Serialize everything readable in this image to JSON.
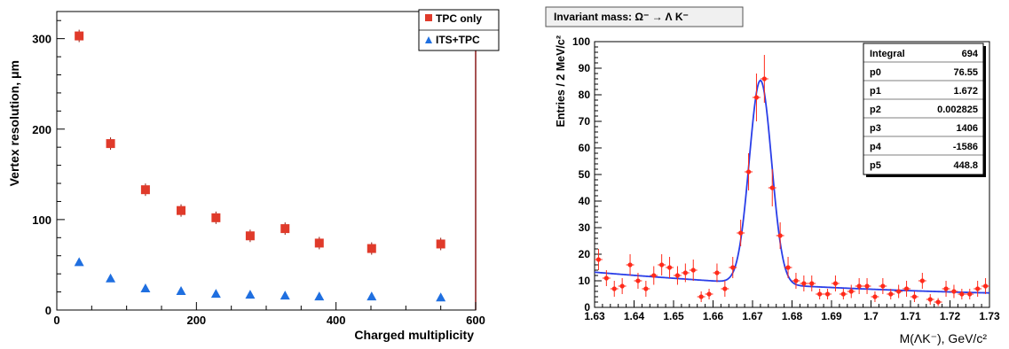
{
  "chart_data": [
    {
      "type": "scatter",
      "title": "",
      "xlabel": "Charged multiplicity",
      "ylabel": "Vertex resolution, μm",
      "xlim": [
        0,
        600
      ],
      "ylim": [
        0,
        330
      ],
      "x_ticks": [
        "0",
        "200",
        "400",
        "600"
      ],
      "y_ticks": [
        "0",
        "100",
        "200",
        "300"
      ],
      "legend_position": "top-right",
      "series": [
        {
          "name": "TPC only",
          "color": "#e03a2a",
          "marker": "square",
          "x": [
            32,
            77,
            127,
            178,
            228,
            277,
            327,
            376,
            451,
            550
          ],
          "y": [
            303,
            184,
            133,
            110,
            102,
            82,
            90,
            74,
            68,
            73
          ]
        },
        {
          "name": "ITS+TPC",
          "color": "#1f6fe0",
          "marker": "triangle",
          "x": [
            32,
            77,
            127,
            178,
            228,
            277,
            327,
            376,
            451,
            550
          ],
          "y": [
            53,
            35,
            24,
            21,
            18,
            17,
            16,
            15,
            15,
            14
          ]
        }
      ]
    },
    {
      "type": "scatter",
      "title": "Invariant mass: Ω⁻ → Λ K⁻",
      "xlabel": "M(ΛK⁻), GeV/c²",
      "ylabel": "Entries / 2 MeV/c²",
      "xlim": [
        1.63,
        1.73
      ],
      "ylim": [
        0,
        100
      ],
      "x_ticks": [
        "1.63",
        "1.64",
        "1.65",
        "1.66",
        "1.67",
        "1.68",
        "1.69",
        "1.7",
        "1.71",
        "1.72",
        "1.73"
      ],
      "y_ticks": [
        "0",
        "10",
        "20",
        "30",
        "40",
        "50",
        "60",
        "70",
        "80",
        "90",
        "100"
      ],
      "data_color": "#ff2a1a",
      "fit_color": "#2a3ee8",
      "fit_params": {
        "p0": 76.55,
        "p1": 1.672,
        "p2": 0.002825,
        "p3": 1406,
        "p4": -1586,
        "p5": 448.8
      },
      "stats": [
        {
          "label": "Integral",
          "value": "694"
        },
        {
          "label": "p0",
          "value": "76.55"
        },
        {
          "label": "p1",
          "value": "1.672"
        },
        {
          "label": "p2",
          "value": "0.002825"
        },
        {
          "label": "p3",
          "value": "1406"
        },
        {
          "label": "p4",
          "value": "-1586"
        },
        {
          "label": "p5",
          "value": "448.8"
        }
      ],
      "x": [
        1.631,
        1.633,
        1.635,
        1.637,
        1.639,
        1.641,
        1.643,
        1.645,
        1.647,
        1.649,
        1.651,
        1.653,
        1.655,
        1.657,
        1.659,
        1.661,
        1.663,
        1.665,
        1.667,
        1.669,
        1.671,
        1.673,
        1.675,
        1.677,
        1.679,
        1.681,
        1.683,
        1.685,
        1.687,
        1.689,
        1.691,
        1.693,
        1.695,
        1.697,
        1.699,
        1.701,
        1.703,
        1.705,
        1.707,
        1.709,
        1.711,
        1.713,
        1.715,
        1.717,
        1.719,
        1.721,
        1.723,
        1.725,
        1.727,
        1.729
      ],
      "y": [
        18,
        11,
        7,
        8,
        16,
        10,
        7,
        12,
        16,
        15,
        12,
        13,
        14,
        4,
        5,
        13,
        7,
        15,
        28,
        51,
        79,
        86,
        45,
        27,
        15,
        10,
        9,
        9,
        5,
        5,
        9,
        5,
        6,
        8,
        8,
        4,
        8,
        5,
        6,
        7,
        4,
        10,
        3,
        2,
        7,
        6,
        5,
        5,
        7,
        8
      ],
      "y_err": [
        4,
        3,
        3,
        3,
        4,
        3,
        3,
        3.5,
        4,
        4,
        3.5,
        3.5,
        4,
        2,
        2,
        3.5,
        3,
        4,
        5,
        7,
        9,
        9,
        7,
        5,
        4,
        3,
        3,
        3,
        2,
        2,
        3,
        2,
        2.5,
        3,
        3,
        2,
        3,
        2,
        2.5,
        3,
        2,
        3,
        2,
        1.5,
        3,
        2.5,
        2,
        2,
        3,
        3
      ]
    }
  ]
}
